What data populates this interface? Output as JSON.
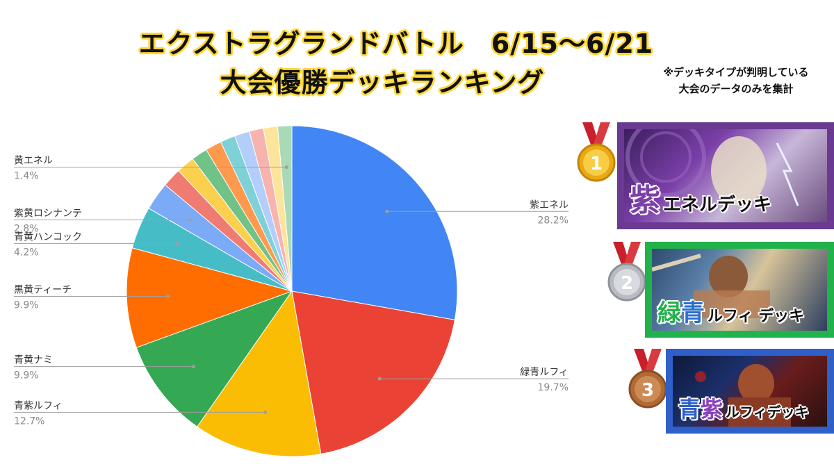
{
  "header": {
    "title_line1": "エクストラグランドバトル　6/15～6/21",
    "title_line2": "大会優勝デッキランキング",
    "note_line1": "※デッキタイプが判明している",
    "note_line2": "大会のデータのみを集計"
  },
  "chart_data": {
    "type": "pie",
    "start_angle": 0,
    "direction": "clockwise",
    "slices": [
      {
        "label": "紫エネル",
        "value": 28.2,
        "color": "#4285f4",
        "labeled": true
      },
      {
        "label": "緑青ルフィ",
        "value": 19.7,
        "color": "#ea4335",
        "labeled": true
      },
      {
        "label": "青紫ルフィ",
        "value": 12.7,
        "color": "#fbbc04",
        "labeled": true
      },
      {
        "label": "青黄ナミ",
        "value": 9.9,
        "color": "#34a853",
        "labeled": true
      },
      {
        "label": "黒黄ティーチ",
        "value": 9.9,
        "color": "#ff6d01",
        "labeled": true
      },
      {
        "label": "青黄ハンコック",
        "value": 4.2,
        "color": "#46bdc6",
        "labeled": true
      },
      {
        "label": "紫黄ロシナンテ",
        "value": 2.8,
        "color": "#7baaf7",
        "labeled": true
      },
      {
        "label": "",
        "value": 1.9,
        "color": "#f07b72",
        "labeled": false
      },
      {
        "label": "",
        "value": 1.8,
        "color": "#fcd04f",
        "labeled": false
      },
      {
        "label": "",
        "value": 1.6,
        "color": "#71c287",
        "labeled": false
      },
      {
        "label": "",
        "value": 1.6,
        "color": "#ff994d",
        "labeled": false
      },
      {
        "label": "",
        "value": 1.5,
        "color": "#7ed1d7",
        "labeled": false
      },
      {
        "label": "",
        "value": 1.5,
        "color": "#b3cefb",
        "labeled": false
      },
      {
        "label": "",
        "value": 1.4,
        "color": "#f7b4ae",
        "labeled": false
      },
      {
        "label": "",
        "value": 1.4,
        "color": "#fde49b",
        "labeled": false
      },
      {
        "label": "黄エネル",
        "value": 1.4,
        "color": "#a8dab5",
        "labeled": true
      }
    ],
    "value_labels": [
      "28.2%",
      "19.7%",
      "12.7%",
      "9.9%",
      "9.9%",
      "4.2%",
      "2.8%",
      "1.4%"
    ]
  },
  "ranking": [
    {
      "rank": "1",
      "color1_char": "紫",
      "color2_char": "",
      "deck_name": "エネルデッキ",
      "medal": "gold-medal",
      "frame_color": "#6a3a92",
      "accent": "#7b3fa8"
    },
    {
      "rank": "2",
      "color1_char": "緑",
      "color2_char": "青",
      "deck_name": "ルフィ デッキ",
      "medal": "silver-medal",
      "frame_color": "#22b24c",
      "accent": "#2a6fd0"
    },
    {
      "rank": "3",
      "color1_char": "青",
      "color2_char": "紫",
      "deck_name": "ルフィデッキ",
      "medal": "bronze-medal",
      "frame_color": "#2f5fc8",
      "accent": "#8a3fc0"
    }
  ]
}
